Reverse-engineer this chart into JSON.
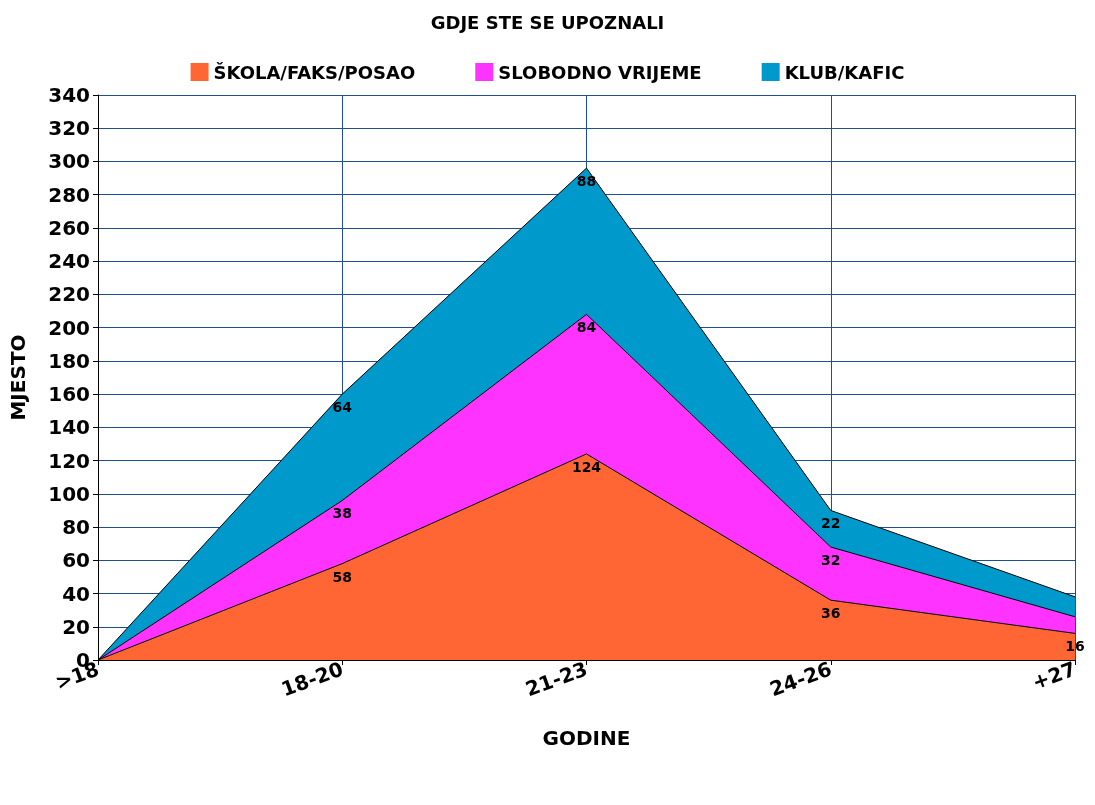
{
  "chart_data": {
    "type": "area",
    "title": "GDJE STE SE UPOZNALI",
    "xlabel": "GODINE",
    "ylabel": "MJESTO",
    "categories": [
      ">18",
      "18-20",
      "21-23",
      "24-26",
      "+27"
    ],
    "series": [
      {
        "name": "ŠKOLA/FAKS/POSAO",
        "color": "#ff6633",
        "values": [
          0,
          58,
          124,
          36,
          16
        ],
        "value_labels": [
          null,
          "58",
          "124",
          "36",
          "16"
        ]
      },
      {
        "name": "SLOBODNO VRIJEME",
        "color": "#ff33ff",
        "values": [
          0,
          38,
          84,
          32,
          10
        ],
        "value_labels": [
          null,
          "38",
          "84",
          "32",
          null
        ]
      },
      {
        "name": "KLUB/KAFIC",
        "color": "#0099cc",
        "values": [
          0,
          64,
          88,
          22,
          12
        ],
        "value_labels": [
          null,
          "64",
          "88",
          "22",
          null
        ]
      }
    ],
    "stacked": true,
    "ylim": [
      0,
      340
    ],
    "yticks": [
      0,
      20,
      40,
      60,
      80,
      100,
      120,
      140,
      160,
      180,
      200,
      220,
      240,
      260,
      280,
      300,
      320,
      340
    ],
    "grid": true,
    "legend": "top"
  }
}
